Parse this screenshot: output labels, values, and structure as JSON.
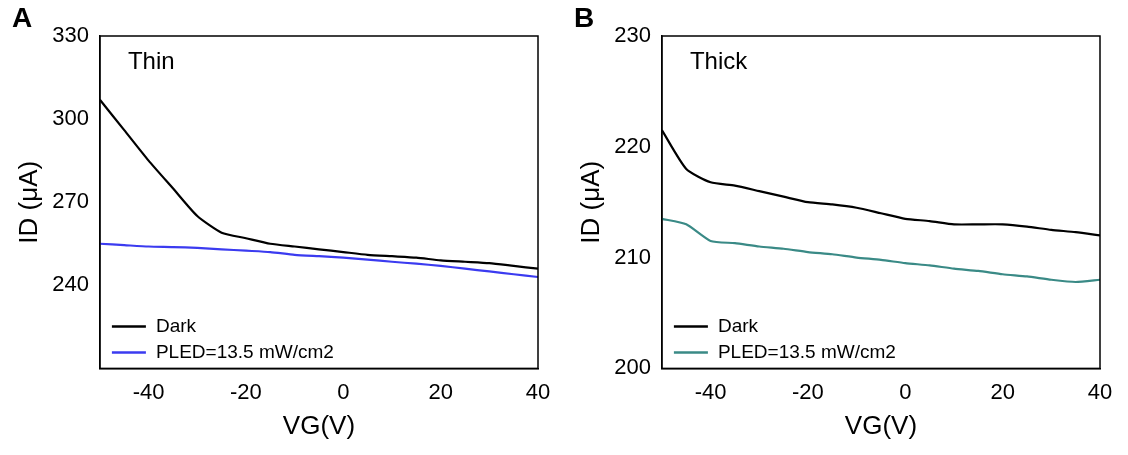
{
  "chart_data": [
    {
      "type": "line",
      "panel": "A",
      "title": "Thin",
      "x_label": "VG(V)",
      "y_label": "ID (μA)",
      "x": [
        -50,
        -45,
        -40,
        -35,
        -30,
        -25,
        -20,
        -15,
        -10,
        -5,
        0,
        5,
        10,
        15,
        20,
        25,
        30,
        35,
        40
      ],
      "series": [
        {
          "name": "Dark",
          "color": "#000000",
          "values": [
            307,
            296,
            285,
            275,
            265,
            259,
            257,
            255,
            254,
            253,
            252,
            251,
            250.5,
            250,
            249,
            248.5,
            248,
            247,
            246
          ]
        },
        {
          "name": "PLED=13.5 mW/cm2",
          "color": "#3b3bf0",
          "values": [
            255,
            254.5,
            254,
            253.8,
            253.5,
            253,
            252.5,
            252,
            251,
            250.5,
            250,
            249.3,
            248.5,
            247.8,
            247,
            246,
            245,
            244,
            243
          ]
        }
      ],
      "xlim": [
        -50,
        40
      ],
      "xticks": [
        -40,
        -20,
        0,
        20,
        40
      ],
      "ylim": [
        210,
        330
      ],
      "yticks": [
        240,
        270,
        300,
        330
      ],
      "grid": false,
      "legend": "lower left"
    },
    {
      "type": "line",
      "panel": "B",
      "title": "Thick",
      "x_label": "VG(V)",
      "y_label": "ID (μA)",
      "x": [
        -50,
        -45,
        -40,
        -35,
        -30,
        -25,
        -20,
        -15,
        -10,
        -5,
        0,
        5,
        10,
        15,
        20,
        25,
        30,
        35,
        40
      ],
      "series": [
        {
          "name": "Dark",
          "color": "#000000",
          "values": [
            221.5,
            218,
            216.8,
            216.5,
            216,
            215.5,
            215,
            214.8,
            214.5,
            214,
            213.5,
            213.3,
            213,
            213,
            213,
            212.8,
            212.5,
            212.3,
            212
          ]
        },
        {
          "name": "PLED=13.5 mW/cm2",
          "color": "#3a8a86",
          "values": [
            213.5,
            213,
            211.5,
            211.3,
            211,
            210.8,
            210.5,
            210.3,
            210,
            209.8,
            209.5,
            209.3,
            209,
            208.8,
            208.5,
            208.3,
            208,
            207.8,
            208
          ]
        }
      ],
      "xlim": [
        -50,
        40
      ],
      "xticks": [
        -40,
        -20,
        0,
        20,
        40
      ],
      "ylim": [
        200,
        230
      ],
      "yticks": [
        200,
        210,
        220,
        230
      ],
      "grid": false,
      "legend": "lower left"
    }
  ]
}
